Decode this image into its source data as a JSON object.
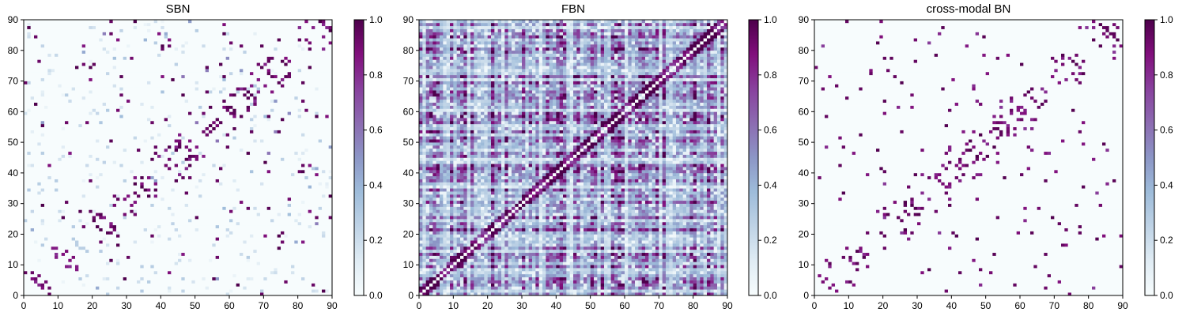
{
  "colors": {
    "scale": [
      "#f7fcfd",
      "#e0ecf4",
      "#bfd3e6",
      "#9ebcda",
      "#8c96c6",
      "#8c6bb1",
      "#88419d",
      "#810f7c",
      "#4d004b"
    ],
    "axis": "#000000"
  },
  "chart_data": [
    {
      "type": "heatmap",
      "title": "SBN",
      "grid": false,
      "xlim": [
        0,
        90
      ],
      "ylim": [
        0,
        90
      ],
      "x_ticks": [
        "0",
        "10",
        "20",
        "30",
        "40",
        "50",
        "60",
        "70",
        "80",
        "90"
      ],
      "y_ticks": [
        "0",
        "10",
        "20",
        "30",
        "40",
        "50",
        "60",
        "70",
        "80",
        "90"
      ],
      "colorbar": {
        "range": [
          0.0,
          1.0
        ],
        "ticks": [
          "0.0",
          "0.2",
          "0.4",
          "0.6",
          "0.8",
          "1.0"
        ],
        "colormap": "BuPu"
      },
      "matrix_size": 90,
      "description": "sparse symmetric connectivity matrix, mostly near 0 with scattered entries near 1 along off-diagonal clusters"
    },
    {
      "type": "heatmap",
      "title": "FBN",
      "grid": false,
      "xlim": [
        0,
        90
      ],
      "ylim": [
        0,
        90
      ],
      "x_ticks": [
        "0",
        "10",
        "20",
        "30",
        "40",
        "50",
        "60",
        "70",
        "80",
        "90"
      ],
      "y_ticks": [
        "0",
        "10",
        "20",
        "30",
        "40",
        "50",
        "60",
        "70",
        "80",
        "90"
      ],
      "colorbar": {
        "range": [
          0.0,
          1.0
        ],
        "ticks": [
          "0.0",
          "0.2",
          "0.4",
          "0.6",
          "0.8",
          "1.0"
        ],
        "colormap": "BuPu"
      },
      "matrix_size": 90,
      "description": "dense symmetric connectivity matrix with values spread across 0 to 1, stripe patterns and strong diagonal"
    },
    {
      "type": "heatmap",
      "title": "cross-modal BN",
      "grid": false,
      "xlim": [
        0,
        90
      ],
      "ylim": [
        0,
        90
      ],
      "x_ticks": [
        "0",
        "10",
        "20",
        "30",
        "40",
        "50",
        "60",
        "70",
        "80",
        "90"
      ],
      "y_ticks": [
        "0",
        "10",
        "20",
        "30",
        "40",
        "50",
        "60",
        "70",
        "80",
        "90"
      ],
      "colorbar": {
        "range": [
          0.0,
          1.0
        ],
        "ticks": [
          "0.0",
          "0.2",
          "0.4",
          "0.6",
          "0.8",
          "1.0"
        ],
        "colormap": "BuPu"
      },
      "matrix_size": 90,
      "description": "sparse symmetric matrix, mostly 0 with isolated entries near 1"
    }
  ]
}
